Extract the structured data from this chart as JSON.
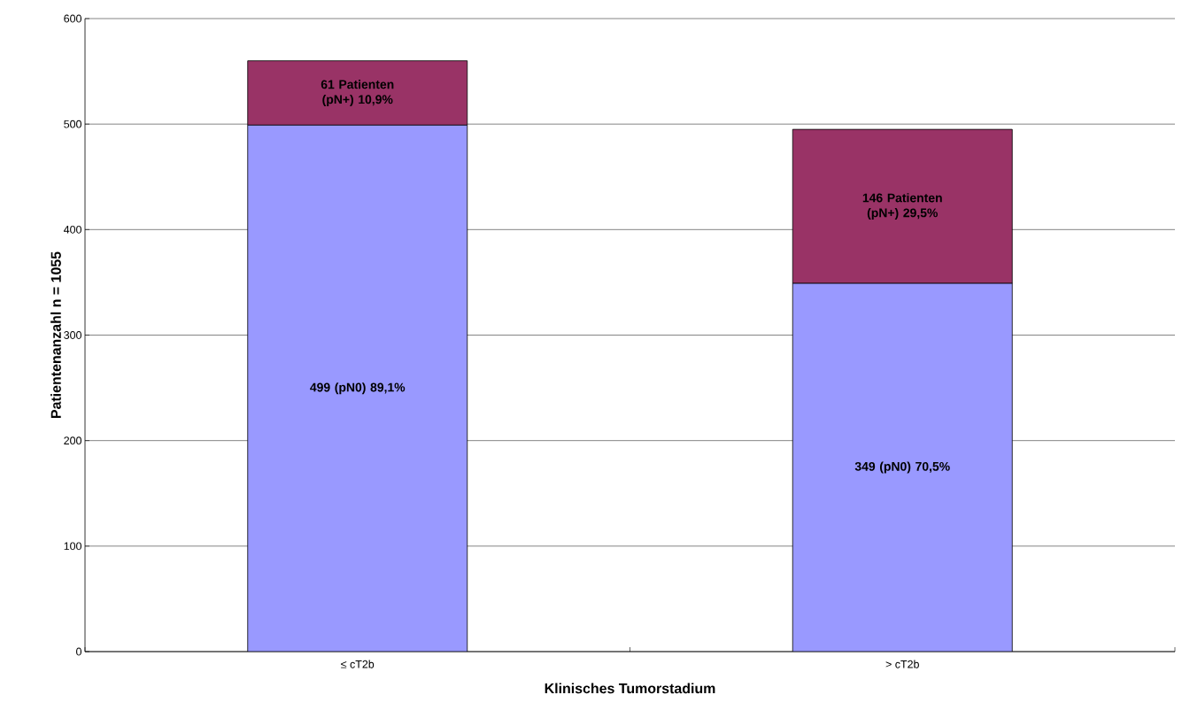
{
  "chart_data": {
    "type": "bar",
    "stacked": true,
    "xlabel": "Klinisches Tumorstadium",
    "ylabel": "Patientenanzahl n = 1055",
    "categories": [
      "≤ cT2b",
      "> cT2b"
    ],
    "series": [
      {
        "color": "#9999ff",
        "values": [
          499,
          349
        ],
        "value_labels": [
          "499 (pN0) 89,1%",
          "349 (pN0) 70,5%"
        ]
      },
      {
        "color": "#993366",
        "values": [
          61,
          146
        ],
        "value_labels": [
          "61 Patienten (pN+) 10,9%",
          "146 Patienten (pN+) 29,5%"
        ]
      }
    ],
    "ylim": [
      0,
      600
    ],
    "yticks": [
      0,
      100,
      200,
      300,
      400,
      500,
      600
    ],
    "grid": "y"
  }
}
